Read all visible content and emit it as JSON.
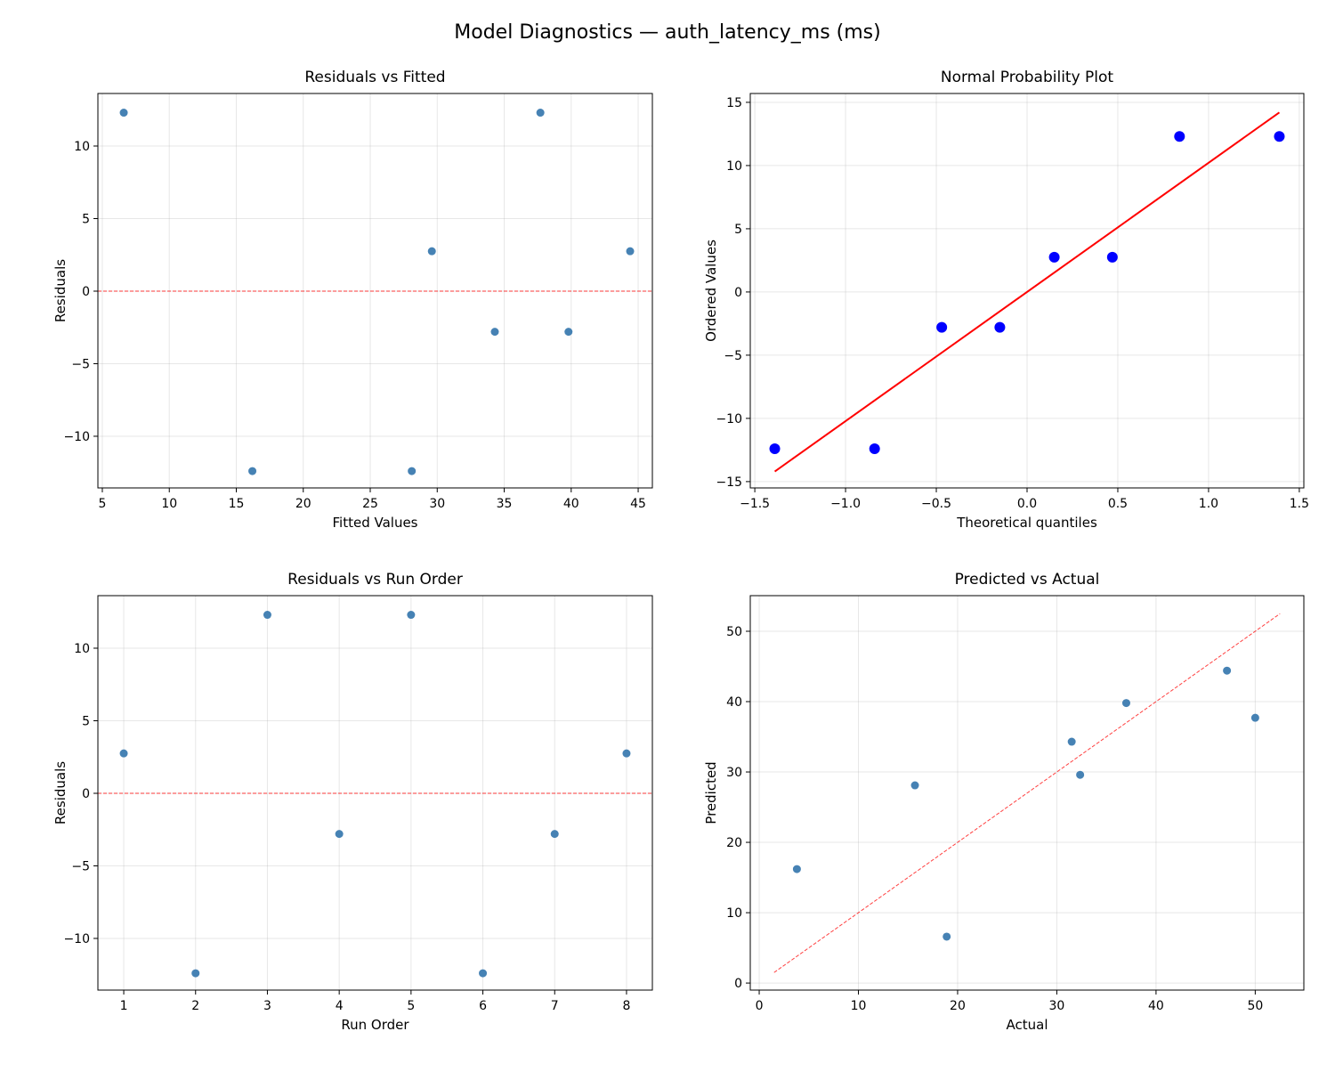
{
  "suptitle": "Model Diagnostics — auth_latency_ms (ms)",
  "chart_data": [
    {
      "type": "scatter",
      "title": "Residuals vs Fitted",
      "xlabel": "Fitted Values",
      "ylabel": "Residuals",
      "xlim": [
        4.67,
        46.06
      ],
      "ylim": [
        -13.56,
        13.62
      ],
      "xticks": [
        5,
        10,
        15,
        20,
        25,
        30,
        35,
        40,
        45
      ],
      "xtick_labels": [
        "5",
        "10",
        "15",
        "20",
        "25",
        "30",
        "35",
        "40",
        "45"
      ],
      "yticks": [
        -10,
        -5,
        0,
        5,
        10
      ],
      "ytick_labels": [
        "−10",
        "−5",
        "0",
        "5",
        "10"
      ],
      "grid": true,
      "x": [
        6.6,
        16.2,
        28.1,
        29.6,
        34.3,
        37.7,
        39.8,
        44.4
      ],
      "y": [
        12.3,
        -12.4,
        -12.4,
        2.75,
        -2.8,
        12.3,
        -2.8,
        2.75
      ],
      "marker_color": "#4682b4",
      "reference_line": {
        "kind": "horizontal",
        "y": 0,
        "style": "dashed",
        "color": "#ff0000"
      }
    },
    {
      "type": "scatter",
      "title": "Normal Probability Plot",
      "xlabel": "Theoretical quantiles",
      "ylabel": "Ordered Values",
      "xlim": [
        -1.525,
        1.525
      ],
      "ylim": [
        -15.5,
        15.7
      ],
      "xticks": [
        -1.5,
        -1.0,
        -0.5,
        0.0,
        0.5,
        1.0,
        1.5
      ],
      "xtick_labels": [
        "−1.5",
        "−1.0",
        "−0.5",
        "0.0",
        "0.5",
        "1.0",
        "1.5"
      ],
      "yticks": [
        -15,
        -10,
        -5,
        0,
        5,
        10,
        15
      ],
      "ytick_labels": [
        "−15",
        "−10",
        "−5",
        "0",
        "5",
        "10",
        "15"
      ],
      "grid": true,
      "x": [
        -1.39,
        -0.84,
        -0.47,
        -0.15,
        0.15,
        0.47,
        0.84,
        1.39
      ],
      "y": [
        -12.4,
        -12.4,
        -2.8,
        -2.8,
        2.75,
        2.75,
        12.3,
        12.3
      ],
      "marker_color": "#0000ff",
      "reference_line": {
        "kind": "segment",
        "x": [
          -1.39,
          1.39
        ],
        "y": [
          -14.2,
          14.2
        ],
        "style": "solid",
        "color": "#ff0000"
      }
    },
    {
      "type": "scatter",
      "title": "Residuals vs Run Order",
      "xlabel": "Run Order",
      "ylabel": "Residuals",
      "xlim": [
        0.64,
        8.36
      ],
      "ylim": [
        -13.56,
        13.62
      ],
      "xticks": [
        1,
        2,
        3,
        4,
        5,
        6,
        7,
        8
      ],
      "xtick_labels": [
        "1",
        "2",
        "3",
        "4",
        "5",
        "6",
        "7",
        "8"
      ],
      "yticks": [
        -10,
        -5,
        0,
        5,
        10
      ],
      "ytick_labels": [
        "−10",
        "−5",
        "0",
        "5",
        "10"
      ],
      "grid": true,
      "x": [
        1,
        2,
        3,
        4,
        5,
        6,
        7,
        8
      ],
      "y": [
        2.75,
        -12.4,
        12.3,
        -2.8,
        12.3,
        -12.4,
        -2.8,
        2.75
      ],
      "marker_color": "#4682b4",
      "reference_line": {
        "kind": "horizontal",
        "y": 0,
        "style": "dashed",
        "color": "#ff0000"
      }
    },
    {
      "type": "scatter",
      "title": "Predicted vs Actual",
      "xlabel": "Actual",
      "ylabel": "Predicted",
      "xlim": [
        -0.9,
        54.9
      ],
      "ylim": [
        -1.0,
        55.06
      ],
      "xticks": [
        0,
        10,
        20,
        30,
        40,
        50
      ],
      "xtick_labels": [
        "0",
        "10",
        "20",
        "30",
        "40",
        "50"
      ],
      "yticks": [
        0,
        10,
        20,
        30,
        40,
        50
      ],
      "ytick_labels": [
        "0",
        "10",
        "20",
        "30",
        "40",
        "50"
      ],
      "grid": true,
      "x": [
        3.8,
        15.7,
        18.9,
        31.5,
        32.35,
        37.0,
        47.15,
        50.0
      ],
      "y": [
        16.2,
        28.1,
        6.6,
        34.3,
        29.6,
        39.8,
        44.4,
        37.7
      ],
      "marker_color": "#4682b4",
      "reference_line": {
        "kind": "segment",
        "x": [
          1.5,
          52.5
        ],
        "y": [
          1.5,
          52.5
        ],
        "style": "dashed",
        "color": "#ff0000"
      }
    }
  ]
}
